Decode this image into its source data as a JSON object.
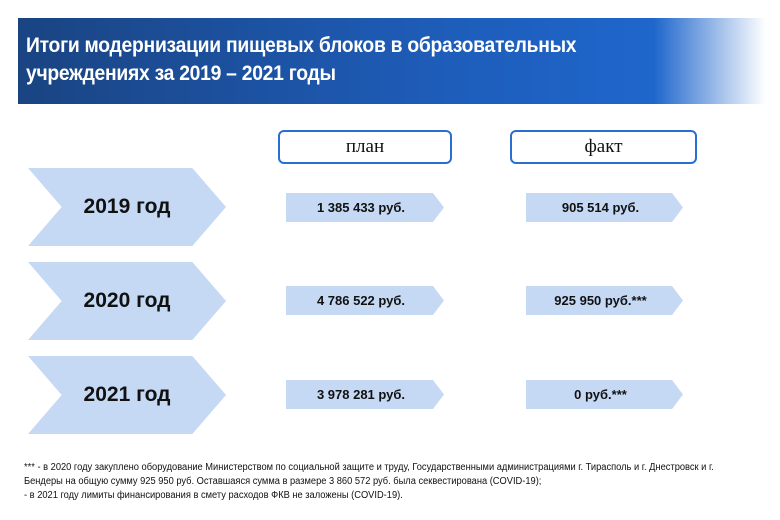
{
  "header": {
    "title_line1": "Итоги модернизации пищевых блоков в образовательных",
    "title_line2": "учреждениях  за 2019 – 2021 годы"
  },
  "columns": {
    "plan": "план",
    "fact": "факт"
  },
  "rows": [
    {
      "year": "2019 год",
      "plan": "1 385 433 руб.",
      "fact": "905 514 руб."
    },
    {
      "year": "2020 год",
      "plan": "4 786 522 руб.",
      "fact": "925 950 руб.***"
    },
    {
      "year": "2021 год",
      "plan": "3 978 281 руб.",
      "fact": "0 руб.***"
    }
  ],
  "footnote": {
    "line1": "*** - в 2020 году закуплено оборудование Министерством по социальной защите и труду, Государственными администрациями г. Тирасполь и г. Днестровск и г.",
    "line2": "Бендеры  на общую сумму 925 950 руб. Оставшаяся сумма в размере 3 860 572 руб. была секвестирована (COVID-19);",
    "line3": "- в 2021 году лимиты  финансирования  в смету расходов ФКВ не заложены (COVID-19)."
  },
  "colors": {
    "header": "#1e5cb8",
    "chevron": "#c5d9f5",
    "border": "#2a6fcf"
  }
}
